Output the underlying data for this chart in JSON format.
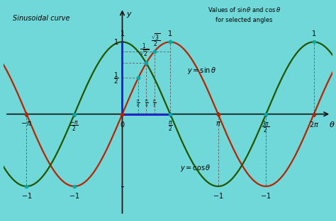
{
  "bg_color": "#70d8d8",
  "sin_color": "#bb2200",
  "cos_color": "#225500",
  "axis_color": "#111111",
  "blue_line_color": "#2222cc",
  "dashed_color": "#666666",
  "dot_teal": "#00aaaa",
  "dot_red": "#bb2200",
  "x_min": -3.9,
  "x_max": 6.9,
  "y_min": -1.45,
  "y_max": 1.55,
  "title_left": "Sinusoidal curve",
  "title_right_line1": "Values of $\\sin\\theta$ and $\\cos\\theta$",
  "title_right_line2": "for selected angles",
  "label_sin": "$y = \\sin\\theta$",
  "label_cos": "$y = \\cos\\theta$",
  "label_theta": "$\\theta$",
  "label_y": "$y$",
  "pi": 3.14159265358979
}
